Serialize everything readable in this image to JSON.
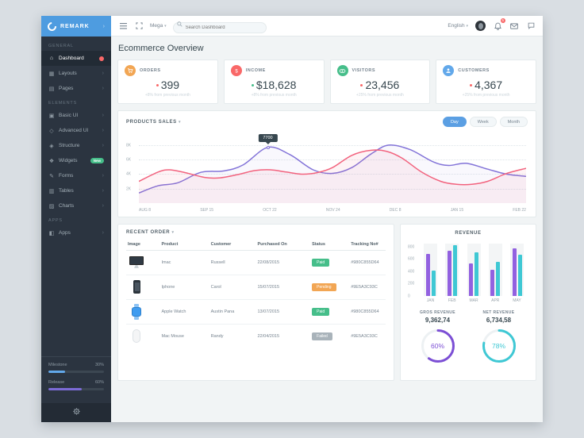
{
  "brand": "REMARK",
  "topbar": {
    "menu": "Mega",
    "search_placeholder": "Search Dashboard",
    "language": "English",
    "notification_count": "5"
  },
  "sidebar": {
    "sections": [
      {
        "title": "GENERAL",
        "items": [
          {
            "label": "Dashboard",
            "icon": "dashboard-icon",
            "glyph": "⌂",
            "active": true,
            "badge": {
              "type": "dot"
            }
          },
          {
            "label": "Layouts",
            "icon": "layouts-icon",
            "glyph": "▦",
            "chevron": true
          },
          {
            "label": "Pages",
            "icon": "pages-icon",
            "glyph": "▤",
            "chevron": true
          }
        ]
      },
      {
        "title": "Elements",
        "items": [
          {
            "label": "Basic UI",
            "icon": "basic-ui-icon",
            "glyph": "▣",
            "chevron": true
          },
          {
            "label": "Advanced UI",
            "icon": "advanced-ui-icon",
            "glyph": "◇",
            "chevron": true
          },
          {
            "label": "Structure",
            "icon": "structure-icon",
            "glyph": "◈",
            "chevron": true
          },
          {
            "label": "Widgets",
            "icon": "widgets-icon",
            "glyph": "❖",
            "badge": {
              "type": "pill",
              "text": "New"
            }
          },
          {
            "label": "Forms",
            "icon": "forms-icon",
            "glyph": "✎",
            "chevron": true
          },
          {
            "label": "Tables",
            "icon": "tables-icon",
            "glyph": "▥",
            "chevron": true
          },
          {
            "label": "Charts",
            "icon": "charts-icon",
            "glyph": "▨",
            "chevron": true
          }
        ]
      },
      {
        "title": "APPS",
        "items": [
          {
            "label": "Apps",
            "icon": "apps-icon",
            "glyph": "◧",
            "chevron": true
          }
        ]
      }
    ],
    "progress": [
      {
        "label": "Milestone",
        "value": "30%",
        "pct": 30,
        "color": "#62a8ea"
      },
      {
        "label": "Release",
        "value": "60%",
        "pct": 60,
        "color": "#7c6bd6"
      }
    ]
  },
  "page": {
    "title": "Ecommerce Overview"
  },
  "stats": [
    {
      "label": "ORDERS",
      "value": "399",
      "delta": "+8% from previous month",
      "icon": "cart-icon",
      "icon_key": "cart",
      "icon_color": "#f2a654",
      "marker_color": "#f96868"
    },
    {
      "label": "INCOME",
      "value": "$18,628",
      "delta": "+8% from previous month",
      "icon": "dollar-icon",
      "icon_key": "dollar",
      "icon_color": "#f96868",
      "marker_color": "#46be8a"
    },
    {
      "label": "VISITORS",
      "value": "23,456",
      "delta": "+25% from previous month",
      "icon": "eye-icon",
      "icon_key": "eye",
      "icon_color": "#46be8a",
      "marker_color": "#f96868"
    },
    {
      "label": "CUSTOMERS",
      "value": "4,367",
      "delta": "+25% from previous month",
      "icon": "user-icon",
      "icon_key": "user",
      "icon_color": "#62a8ea",
      "marker_color": "#f96868"
    }
  ],
  "sales": {
    "title": "PRODUCTS SALES",
    "ranges": [
      "Day",
      "Week",
      "Month"
    ],
    "active_range": "Day",
    "chart_data": {
      "type": "line",
      "x": [
        "AUG 8",
        "SEP 15",
        "OCT 22",
        "NOV 24",
        "DEC 8",
        "JAN 15",
        "FEB 22"
      ],
      "yticks": [
        {
          "label": "2K",
          "v": 2
        },
        {
          "label": "4K",
          "v": 4
        },
        {
          "label": "6K",
          "v": 6
        },
        {
          "label": "8K",
          "v": 8
        }
      ],
      "ylim": [
        0,
        8000
      ],
      "grid": "dotted-horizontal",
      "series": [
        {
          "name": "series-purple",
          "color": "#8273d8",
          "points": [
            [
              0,
              1.4
            ],
            [
              0.05,
              2.4
            ],
            [
              0.1,
              2.8
            ],
            [
              0.16,
              4.25
            ],
            [
              0.22,
              4.45
            ],
            [
              0.27,
              5.3
            ],
            [
              0.333,
              7.7
            ],
            [
              0.39,
              6.7
            ],
            [
              0.45,
              4.6
            ],
            [
              0.5,
              4.1
            ],
            [
              0.55,
              4.9
            ],
            [
              0.6,
              6.8
            ],
            [
              0.645,
              8.0
            ],
            [
              0.7,
              7.4
            ],
            [
              0.76,
              5.7
            ],
            [
              0.8,
              5.2
            ],
            [
              0.845,
              5.5
            ],
            [
              0.9,
              4.7
            ],
            [
              0.95,
              4.0
            ],
            [
              1,
              3.7
            ]
          ]
        },
        {
          "name": "series-red",
          "color": "#f2637e",
          "points": [
            [
              0,
              3.0
            ],
            [
              0.05,
              4.3
            ],
            [
              0.08,
              4.6
            ],
            [
              0.12,
              4.2
            ],
            [
              0.17,
              3.55
            ],
            [
              0.21,
              3.5
            ],
            [
              0.26,
              4.0
            ],
            [
              0.3,
              4.5
            ],
            [
              0.34,
              4.6
            ],
            [
              0.38,
              4.3
            ],
            [
              0.42,
              4.0
            ],
            [
              0.46,
              4.2
            ],
            [
              0.5,
              4.9
            ],
            [
              0.55,
              6.6
            ],
            [
              0.6,
              7.3
            ],
            [
              0.64,
              7.15
            ],
            [
              0.68,
              6.2
            ],
            [
              0.73,
              4.3
            ],
            [
              0.78,
              3.0
            ],
            [
              0.82,
              2.6
            ],
            [
              0.86,
              2.6
            ],
            [
              0.9,
              3.0
            ],
            [
              0.95,
              4.1
            ],
            [
              1,
              4.8
            ]
          ]
        }
      ],
      "tooltip": {
        "value": "7700",
        "x_frac": 0.333,
        "point_value": 7.7
      }
    }
  },
  "orders": {
    "title": "RECENT ORDER",
    "columns": [
      "Image",
      "Product",
      "Customer",
      "Purchased On",
      "Status",
      "Tracking No#"
    ],
    "status_colors": {
      "Paid": "#46be8a",
      "Pending": "#f2a654",
      "Failed": "#a9b3ba"
    },
    "rows": [
      {
        "image": "imac",
        "product": "Imac",
        "customer": "Russell",
        "purchased": "22/08/2015",
        "status": "Paid",
        "tracking": "#980C855D64"
      },
      {
        "image": "iphone",
        "product": "Iphone",
        "customer": "Carol",
        "purchased": "15/07/2015",
        "status": "Pending",
        "tracking": "#9E5A3C93C"
      },
      {
        "image": "watch",
        "product": "Apple Watch",
        "customer": "Austin Pana",
        "purchased": "13/07/2015",
        "status": "Paid",
        "tracking": "#980C855D64"
      },
      {
        "image": "mouse",
        "product": "Mac Mouse",
        "customer": "Randy",
        "purchased": "22/04/2015",
        "status": "Failed",
        "tracking": "#9E5A3C93C"
      }
    ]
  },
  "revenue": {
    "title": "REVENUE",
    "chart_data": {
      "type": "bar",
      "categories": [
        "JAN",
        "FEB",
        "MAR",
        "APR",
        "MAY"
      ],
      "yticks": [
        800,
        600,
        400,
        200,
        0
      ],
      "ylim": [
        0,
        800
      ],
      "series": [
        {
          "name": "series-purple",
          "color": "#9261e0",
          "values": [
            680,
            730,
            530,
            430,
            770
          ]
        },
        {
          "name": "series-teal",
          "color": "#3fc8d4",
          "values": [
            410,
            830,
            710,
            560,
            670
          ]
        }
      ]
    },
    "gross": {
      "label": "GROS REVENUE",
      "value": "9,362,74",
      "pct": 60,
      "pct_label": "60%",
      "color": "#7c4fd5"
    },
    "net": {
      "label": "NET REVENUE",
      "value": "6,734,58",
      "pct": 78,
      "pct_label": "78%",
      "color": "#3fc8d4"
    }
  }
}
